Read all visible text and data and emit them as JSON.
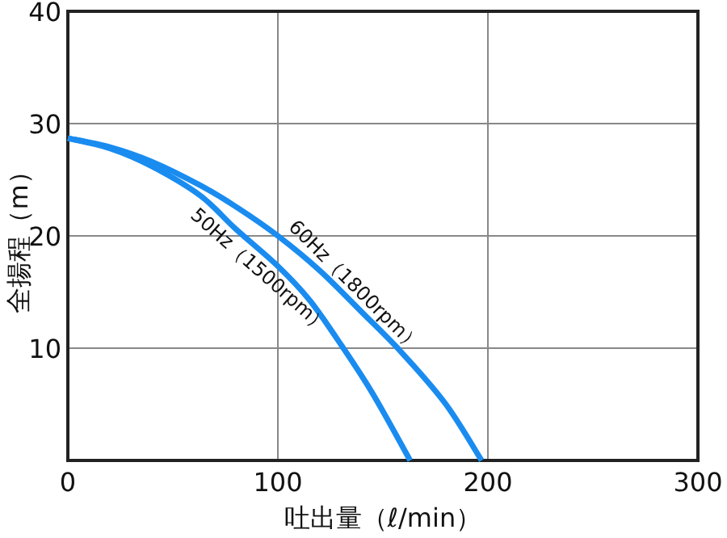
{
  "chart_data": {
    "type": "line",
    "xlabel": "吐出量（ℓ/min）",
    "ylabel": "全揚程（m）",
    "xlim": [
      0,
      300
    ],
    "xticks": [
      0,
      100,
      200,
      300
    ],
    "ylim": [
      0,
      40
    ],
    "yticks": [
      10,
      20,
      30,
      40
    ],
    "grid": true,
    "line_style": "solid",
    "marker": "none",
    "series": [
      {
        "name": "60Hz（1800rpm）",
        "color": "#1a8cf0",
        "x": [
          0,
          20,
          40,
          63,
          80,
          100,
          120,
          140,
          159,
          180,
          197
        ],
        "values": [
          28.7,
          27.9,
          26.6,
          24.5,
          22.6,
          20,
          16.9,
          13.2,
          9.6,
          5.0,
          0
        ]
      },
      {
        "name": "50Hz（1500rpm）",
        "color": "#1a8cf0",
        "x": [
          0,
          20,
          40,
          63,
          80,
          100,
          115,
          129,
          145,
          163
        ],
        "values": [
          28.7,
          27.8,
          26.2,
          23.6,
          20.6,
          17.3,
          14.3,
          10.6,
          6.0,
          0
        ]
      }
    ]
  }
}
